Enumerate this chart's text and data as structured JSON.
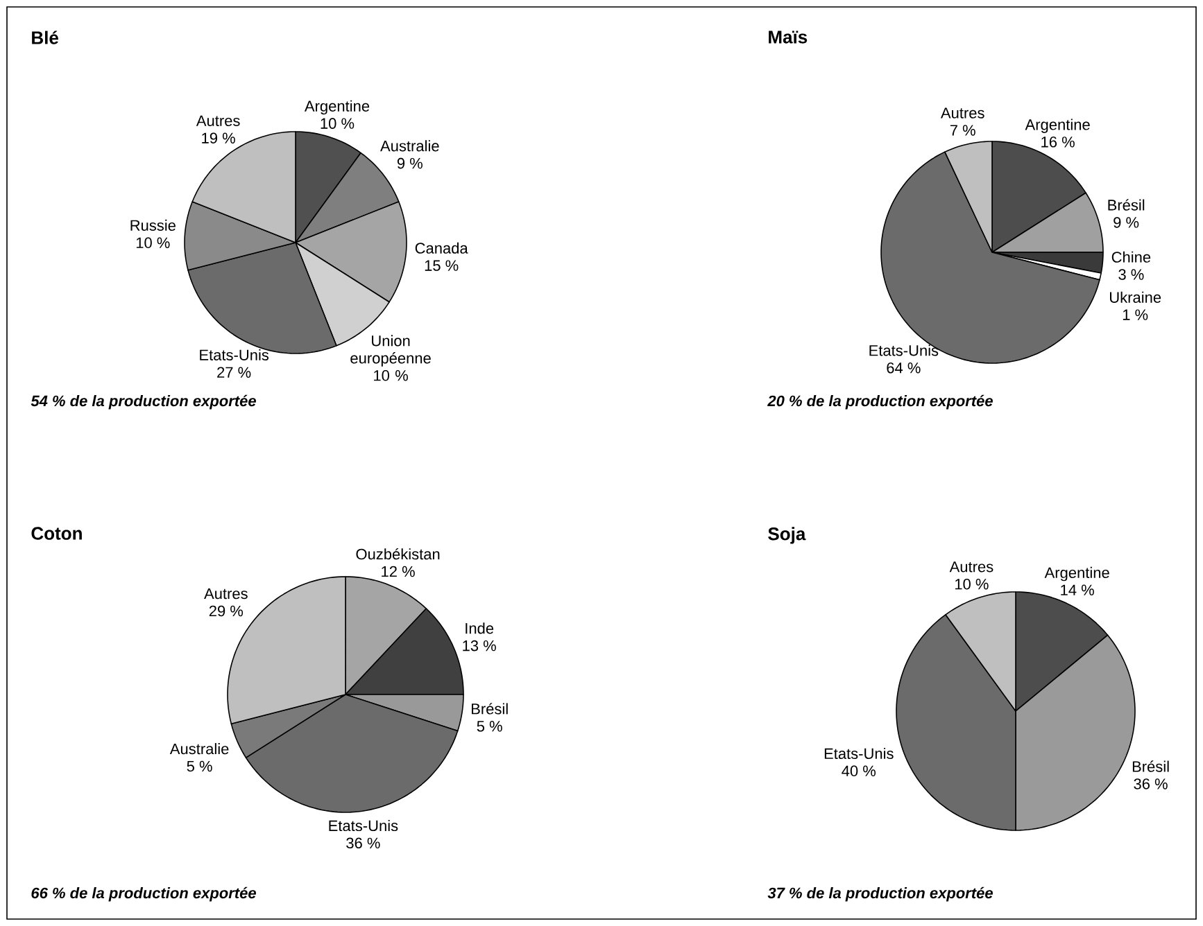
{
  "chart_data": [
    {
      "type": "pie",
      "title": "Blé",
      "categories": [
        "Argentine",
        "Australie",
        "Canada",
        "Union européenne",
        "Etats-Unis",
        "Russie",
        "Autres"
      ],
      "values": [
        10,
        9,
        15,
        10,
        27,
        10,
        19
      ],
      "colors": [
        "#505050",
        "#7f7f7f",
        "#a5a5a5",
        "#d0d0d0",
        "#6b6b6b",
        "#8a8a8a",
        "#bfbfbf"
      ],
      "value_labels": [
        "10 %",
        "9 %",
        "15 %",
        "10 %",
        "27 %",
        "10 %",
        "19 %"
      ],
      "annotations": [
        "54 % de la production exportée"
      ]
    },
    {
      "type": "pie",
      "title": "Maïs",
      "categories": [
        "Argentine",
        "Brésil",
        "Chine",
        "Ukraine",
        "Etats-Unis",
        "Autres"
      ],
      "values": [
        16,
        9,
        3,
        1,
        64,
        7
      ],
      "colors": [
        "#4d4d4d",
        "#a0a0a0",
        "#3a3a3a",
        "#ffffff",
        "#6b6b6b",
        "#bfbfbf"
      ],
      "value_labels": [
        "16 %",
        "9 %",
        "3 %",
        "1 %",
        "64 %",
        "7 %"
      ],
      "annotations": [
        "20 % de la production exportée"
      ]
    },
    {
      "type": "pie",
      "title": "Coton",
      "categories": [
        "Ouzbékistan",
        "Inde",
        "Brésil",
        "Etats-Unis",
        "Australie",
        "Autres"
      ],
      "values": [
        12,
        13,
        5,
        36,
        5,
        29
      ],
      "colors": [
        "#a5a5a5",
        "#404040",
        "#999999",
        "#6b6b6b",
        "#7a7a7a",
        "#bfbfbf"
      ],
      "value_labels": [
        "12 %",
        "13 %",
        "5 %",
        "36 %",
        "5 %",
        "29 %"
      ],
      "annotations": [
        "66 % de la production exportée"
      ]
    },
    {
      "type": "pie",
      "title": "Soja",
      "categories": [
        "Argentine",
        "Brésil",
        "Etats-Unis",
        "Autres"
      ],
      "values": [
        14,
        36,
        40,
        10
      ],
      "colors": [
        "#4d4d4d",
        "#9a9a9a",
        "#6b6b6b",
        "#bfbfbf"
      ],
      "value_labels": [
        "14 %",
        "36 %",
        "40 %",
        "10 %"
      ],
      "annotations": [
        "37 % de la production exportée"
      ]
    }
  ]
}
